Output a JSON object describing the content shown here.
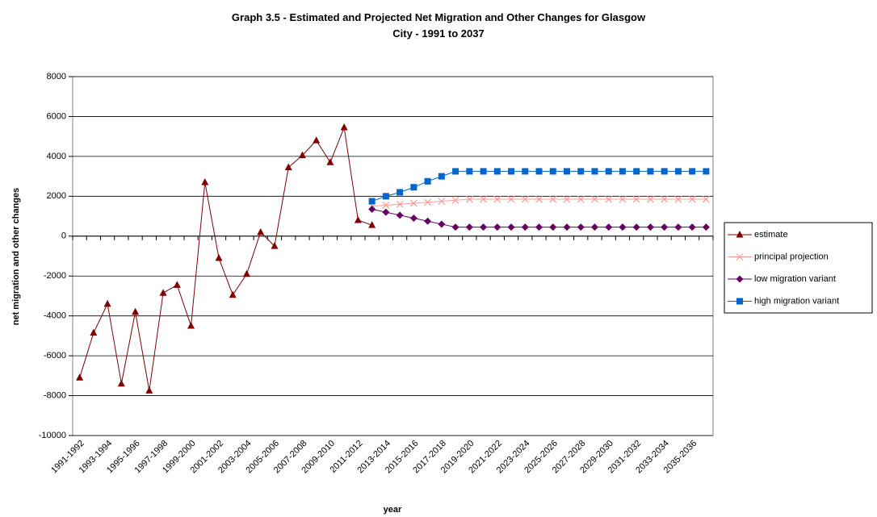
{
  "chart_data": {
    "type": "line",
    "title": "Graph 3.5 - Estimated and Projected Net Migration and Other Changes for Glasgow City - 1991 to 2037",
    "xlabel": "year",
    "ylabel": "net migration and other changes",
    "categories": [
      "1991-1992",
      null,
      "1993-1994",
      null,
      "1995-1996",
      null,
      "1997-1998",
      null,
      "1999-2000",
      null,
      "2001-2002",
      null,
      "2003-2004",
      null,
      "2005-2006",
      null,
      "2007-2008",
      null,
      "2009-2010",
      null,
      "2011-2012",
      null,
      "2013-2014",
      null,
      "2015-2016",
      null,
      "2017-2018",
      null,
      "2019-2020",
      null,
      "2021-2022",
      null,
      "2023-2024",
      null,
      "2025-2026",
      null,
      "2027-2028",
      null,
      "2029-2030",
      null,
      "2031-2032",
      null,
      "2033-2034",
      null,
      "2035-2036",
      null
    ],
    "ylim": [
      -10000,
      8000
    ],
    "yticks": [
      -10000,
      -8000,
      -6000,
      -4000,
      -2000,
      0,
      2000,
      4000,
      6000,
      8000
    ],
    "grid": true,
    "legend": "right",
    "series": [
      {
        "name": "estimate",
        "color": "#800000",
        "marker": "triangle",
        "values": [
          -7100,
          -4850,
          -3400,
          -7400,
          -3800,
          -7750,
          -2850,
          -2450,
          -4500,
          2700,
          -1100,
          -2950,
          -1900,
          200,
          -500,
          3450,
          4050,
          4800,
          3700,
          5450,
          800,
          550,
          null,
          null,
          null,
          null,
          null,
          null,
          null,
          null,
          null,
          null,
          null,
          null,
          null,
          null,
          null,
          null,
          null,
          null,
          null,
          null,
          null,
          null,
          null,
          null
        ]
      },
      {
        "name": "principal projection",
        "color": "#ff9999",
        "marker": "x",
        "values": [
          null,
          null,
          null,
          null,
          null,
          null,
          null,
          null,
          null,
          null,
          null,
          null,
          null,
          null,
          null,
          null,
          null,
          null,
          null,
          null,
          null,
          1500,
          1550,
          1600,
          1650,
          1700,
          1750,
          1800,
          1850,
          1850,
          1850,
          1850,
          1850,
          1850,
          1850,
          1850,
          1850,
          1850,
          1850,
          1850,
          1850,
          1850,
          1850,
          1850,
          1850,
          1850
        ]
      },
      {
        "name": "low migration variant",
        "color": "#660066",
        "marker": "diamond",
        "values": [
          null,
          null,
          null,
          null,
          null,
          null,
          null,
          null,
          null,
          null,
          null,
          null,
          null,
          null,
          null,
          null,
          null,
          null,
          null,
          null,
          null,
          1350,
          1200,
          1050,
          900,
          750,
          600,
          450,
          450,
          450,
          450,
          450,
          450,
          450,
          450,
          450,
          450,
          450,
          450,
          450,
          450,
          450,
          450,
          450,
          450,
          450
        ]
      },
      {
        "name": "high migration variant",
        "color": "#0066cc",
        "marker": "square",
        "values": [
          null,
          null,
          null,
          null,
          null,
          null,
          null,
          null,
          null,
          null,
          null,
          null,
          null,
          null,
          null,
          null,
          null,
          null,
          null,
          null,
          null,
          1750,
          2000,
          2200,
          2450,
          2750,
          3000,
          3250,
          3250,
          3250,
          3250,
          3250,
          3250,
          3250,
          3250,
          3250,
          3250,
          3250,
          3250,
          3250,
          3250,
          3250,
          3250,
          3250,
          3250,
          3250
        ]
      }
    ]
  }
}
